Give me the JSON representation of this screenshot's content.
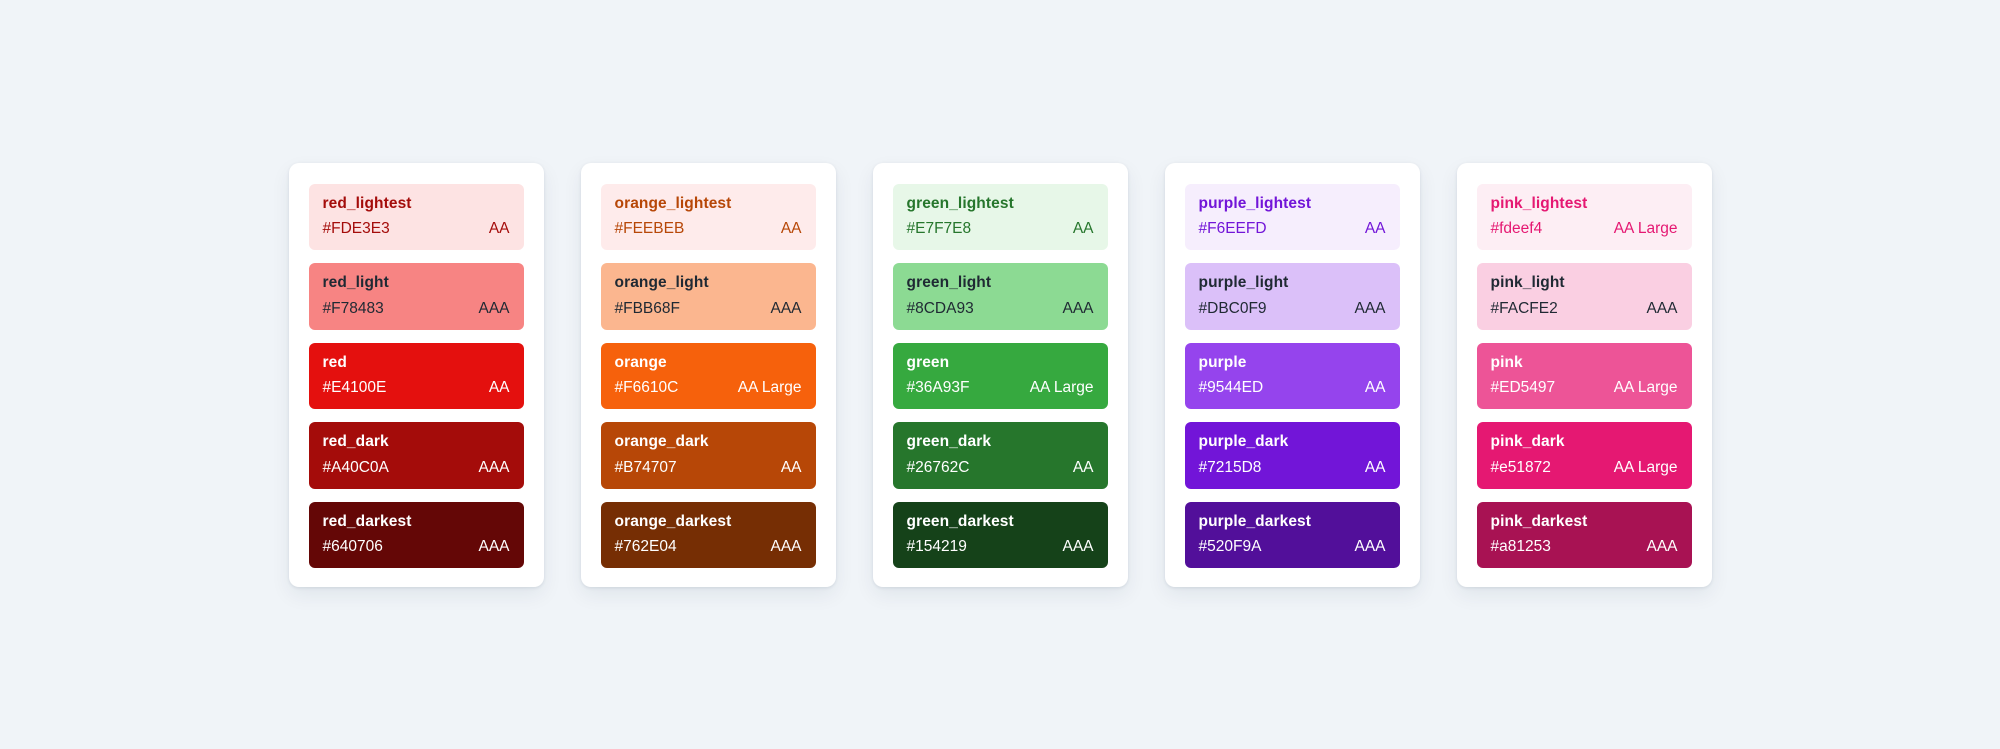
{
  "page": {
    "background": "#F0F4F8",
    "card_background": "#FFFFFF",
    "neutral_dark_text": "#1F2933",
    "light_text": "#FFFFFF"
  },
  "palettes": [
    {
      "name": "red",
      "swatches": [
        {
          "label": "red_lightest",
          "hex": "#FDE3E3",
          "rating": "AA",
          "text_color": "#A40C0A"
        },
        {
          "label": "red_light",
          "hex": "#F78483",
          "rating": "AAA",
          "text_color": "#1F2933"
        },
        {
          "label": "red",
          "hex": "#E4100E",
          "rating": "AA",
          "text_color": "#FFFFFF"
        },
        {
          "label": "red_dark",
          "hex": "#A40C0A",
          "rating": "AAA",
          "text_color": "#FFFFFF"
        },
        {
          "label": "red_darkest",
          "hex": "#640706",
          "rating": "AAA",
          "text_color": "#FFFFFF"
        }
      ]
    },
    {
      "name": "orange",
      "swatches": [
        {
          "label": "orange_lightest",
          "hex": "#FEEBEB",
          "rating": "AA",
          "text_color": "#B74707"
        },
        {
          "label": "orange_light",
          "hex": "#FBB68F",
          "rating": "AAA",
          "text_color": "#1F2933"
        },
        {
          "label": "orange",
          "hex": "#F6610C",
          "rating": "AA Large",
          "text_color": "#FFFFFF"
        },
        {
          "label": "orange_dark",
          "hex": "#B74707",
          "rating": "AA",
          "text_color": "#FFFFFF"
        },
        {
          "label": "orange_darkest",
          "hex": "#762E04",
          "rating": "AAA",
          "text_color": "#FFFFFF"
        }
      ]
    },
    {
      "name": "green",
      "swatches": [
        {
          "label": "green_lightest",
          "hex": "#E7F7E8",
          "rating": "AA",
          "text_color": "#26762C"
        },
        {
          "label": "green_light",
          "hex": "#8CDA93",
          "rating": "AAA",
          "text_color": "#1F2933"
        },
        {
          "label": "green",
          "hex": "#36A93F",
          "rating": "AA Large",
          "text_color": "#FFFFFF"
        },
        {
          "label": "green_dark",
          "hex": "#26762C",
          "rating": "AA",
          "text_color": "#FFFFFF"
        },
        {
          "label": "green_darkest",
          "hex": "#154219",
          "rating": "AAA",
          "text_color": "#FFFFFF"
        }
      ]
    },
    {
      "name": "purple",
      "swatches": [
        {
          "label": "purple_lightest",
          "hex": "#F6EEFD",
          "rating": "AA",
          "text_color": "#7215D8"
        },
        {
          "label": "purple_light",
          "hex": "#DBC0F9",
          "rating": "AAA",
          "text_color": "#1F2933"
        },
        {
          "label": "purple",
          "hex": "#9544ED",
          "rating": "AA",
          "text_color": "#FFFFFF"
        },
        {
          "label": "purple_dark",
          "hex": "#7215D8",
          "rating": "AA",
          "text_color": "#FFFFFF"
        },
        {
          "label": "purple_darkest",
          "hex": "#520F9A",
          "rating": "AAA",
          "text_color": "#FFFFFF"
        }
      ]
    },
    {
      "name": "pink",
      "swatches": [
        {
          "label": "pink_lightest",
          "hex": "#fdeef4",
          "rating": "AA Large",
          "text_color": "#e51872"
        },
        {
          "label": "pink_light",
          "hex": "#FACFE2",
          "rating": "AAA",
          "text_color": "#1F2933"
        },
        {
          "label": "pink",
          "hex": "#ED5497",
          "rating": "AA Large",
          "text_color": "#FFFFFF"
        },
        {
          "label": "pink_dark",
          "hex": "#e51872",
          "rating": "AA Large",
          "text_color": "#FFFFFF"
        },
        {
          "label": "pink_darkest",
          "hex": "#a81253",
          "rating": "AAA",
          "text_color": "#FFFFFF"
        }
      ]
    }
  ]
}
